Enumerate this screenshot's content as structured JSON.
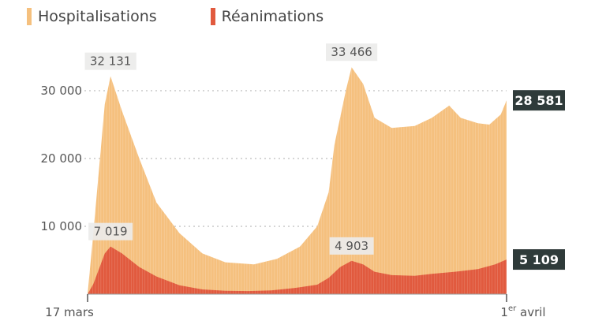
{
  "legend": [
    {
      "label": "Hospitalisations",
      "color": "#f5c07e"
    },
    {
      "label": "Réanimations",
      "color": "#e15a3e"
    }
  ],
  "colors": {
    "hospitalisations": "#f5c07e",
    "reanimations": "#e15a3e",
    "label_box": "#2f3b3a",
    "peak_box": "#ecebea",
    "grid": "#bdbdbd",
    "text": "#555555"
  },
  "chart_data": {
    "type": "area",
    "x_start_label": "17 mars",
    "x_end_label": {
      "prefix": "1",
      "sup": "er",
      "suffix": " avril"
    },
    "ylim": [
      0,
      32500
    ],
    "yticks": [
      {
        "value": 10000,
        "label": "10 000"
      },
      {
        "value": 20000,
        "label": "20 000"
      },
      {
        "value": 30000,
        "label": "30 000"
      }
    ],
    "series": [
      {
        "name": "Hospitalisations",
        "points": [
          [
            0,
            0
          ],
          [
            5,
            9000
          ],
          [
            15,
            28000
          ],
          [
            20,
            32131
          ],
          [
            30,
            27000
          ],
          [
            45,
            20000
          ],
          [
            60,
            13500
          ],
          [
            80,
            9000
          ],
          [
            100,
            6000
          ],
          [
            120,
            4700
          ],
          [
            145,
            4400
          ],
          [
            165,
            5200
          ],
          [
            185,
            7000
          ],
          [
            200,
            10000
          ],
          [
            210,
            15000
          ],
          [
            215,
            22000
          ],
          [
            225,
            30000
          ],
          [
            230,
            33466
          ],
          [
            240,
            31000
          ],
          [
            250,
            26000
          ],
          [
            265,
            24500
          ],
          [
            285,
            24800
          ],
          [
            300,
            26000
          ],
          [
            315,
            27800
          ],
          [
            325,
            26000
          ],
          [
            340,
            25200
          ],
          [
            350,
            25000
          ],
          [
            360,
            26500
          ],
          [
            365,
            28581
          ]
        ]
      },
      {
        "name": "Réanimations",
        "points": [
          [
            0,
            0
          ],
          [
            5,
            1500
          ],
          [
            15,
            6000
          ],
          [
            20,
            7019
          ],
          [
            30,
            6000
          ],
          [
            45,
            4000
          ],
          [
            60,
            2600
          ],
          [
            80,
            1300
          ],
          [
            100,
            700
          ],
          [
            120,
            500
          ],
          [
            140,
            450
          ],
          [
            160,
            550
          ],
          [
            180,
            900
          ],
          [
            200,
            1400
          ],
          [
            210,
            2400
          ],
          [
            220,
            4000
          ],
          [
            230,
            4903
          ],
          [
            240,
            4400
          ],
          [
            250,
            3300
          ],
          [
            265,
            2800
          ],
          [
            285,
            2700
          ],
          [
            300,
            3000
          ],
          [
            320,
            3300
          ],
          [
            340,
            3700
          ],
          [
            355,
            4400
          ],
          [
            365,
            5109
          ]
        ]
      }
    ],
    "annotations": [
      {
        "series": 0,
        "x": 20,
        "value": 32131,
        "label": "32 131"
      },
      {
        "series": 0,
        "x": 230,
        "value": 33466,
        "label": "33 466"
      },
      {
        "series": 1,
        "x": 20,
        "value": 7019,
        "label": "7 019"
      },
      {
        "series": 1,
        "x": 230,
        "value": 4903,
        "label": "4 903"
      }
    ],
    "end_labels": [
      {
        "series": 0,
        "value": 28581,
        "label": "28 581"
      },
      {
        "series": 1,
        "value": 5109,
        "label": "5 109"
      }
    ]
  }
}
